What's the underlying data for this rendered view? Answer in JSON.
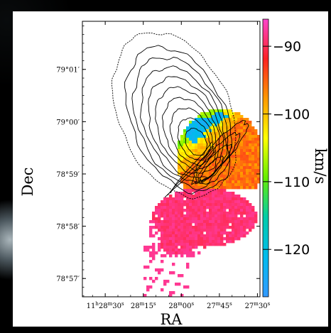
{
  "chart_data": {
    "type": "heatmap",
    "title": "",
    "xlabel": "RA",
    "ylabel": "Dec",
    "x_ticks": [
      {
        "label_parts": [
          "11",
          "h",
          "28",
          "m",
          "30",
          "s"
        ],
        "ra_sec": 2910
      },
      {
        "label_parts": [
          "28",
          "m",
          "15",
          "s"
        ],
        "ra_sec": 2895
      },
      {
        "label_parts": [
          "28",
          "m",
          "00",
          "s"
        ],
        "ra_sec": 2880
      },
      {
        "label_parts": [
          "27",
          "m",
          "45",
          "s"
        ],
        "ra_sec": 2865
      },
      {
        "label_parts": [
          "27",
          "m",
          "30",
          "s"
        ],
        "ra_sec": 2850
      }
    ],
    "y_ticks": [
      {
        "label": "79°01′",
        "dec_arcmin": 61
      },
      {
        "label": "79°00′",
        "dec_arcmin": 60
      },
      {
        "label": "78°59′",
        "dec_arcmin": 59
      },
      {
        "label": "78°58′",
        "dec_arcmin": 58
      },
      {
        "label": "78°57′",
        "dec_arcmin": 57
      }
    ],
    "xlim_ra_sec": [
      2919,
      2849
    ],
    "ylim_dec_arcmin": [
      56.65,
      61.92
    ],
    "colorbar": {
      "label": "km/s",
      "ticks": [
        -90,
        -100,
        -110,
        -120
      ],
      "range": [
        -127,
        -86
      ],
      "colormap": [
        "#ff44cc",
        "#ff2222",
        "#ff9900",
        "#ffff00",
        "#66ee00",
        "#00ccaa",
        "#00bbee",
        "#3399ff"
      ]
    },
    "velocity_regions": [
      {
        "name": "blue",
        "value": -122,
        "center_ra_sec": 2866,
        "center_dec_arcmin": 59.8
      },
      {
        "name": "green",
        "value": -110,
        "center_ra_sec": 2864,
        "center_dec_arcmin": 59.1
      },
      {
        "name": "yellow",
        "value": -104,
        "center_ra_sec": 2858,
        "center_dec_arcmin": 59.3
      },
      {
        "name": "orange-red",
        "value": -97,
        "center_ra_sec": 2855,
        "center_dec_arcmin": 58.9
      },
      {
        "name": "magenta",
        "value": -88,
        "center_ra_sec": 2878,
        "center_dec_arcmin": 58.2
      }
    ]
  }
}
